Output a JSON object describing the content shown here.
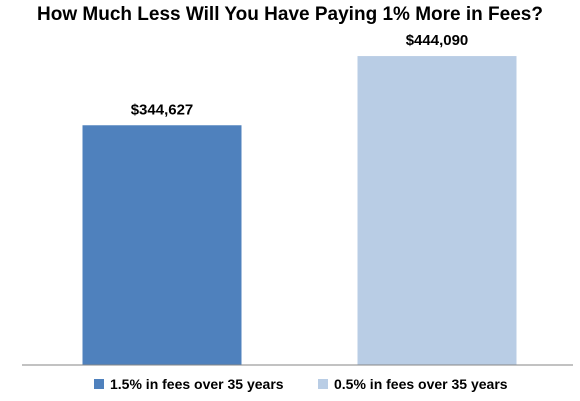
{
  "chart_data": {
    "type": "bar",
    "title": "How Much Less Will You Have Paying 1% More in Fees?",
    "categories": [
      "1.5% in fees over 35 years",
      "0.5% in fees over 35 years"
    ],
    "values": [
      344627,
      444090
    ],
    "data_labels": [
      "$344,627",
      "$444,090"
    ],
    "colors": [
      "#4f81bd",
      "#b9cde5"
    ],
    "ylim": [
      0,
      460000
    ],
    "grid": false,
    "legend_position": "bottom"
  }
}
